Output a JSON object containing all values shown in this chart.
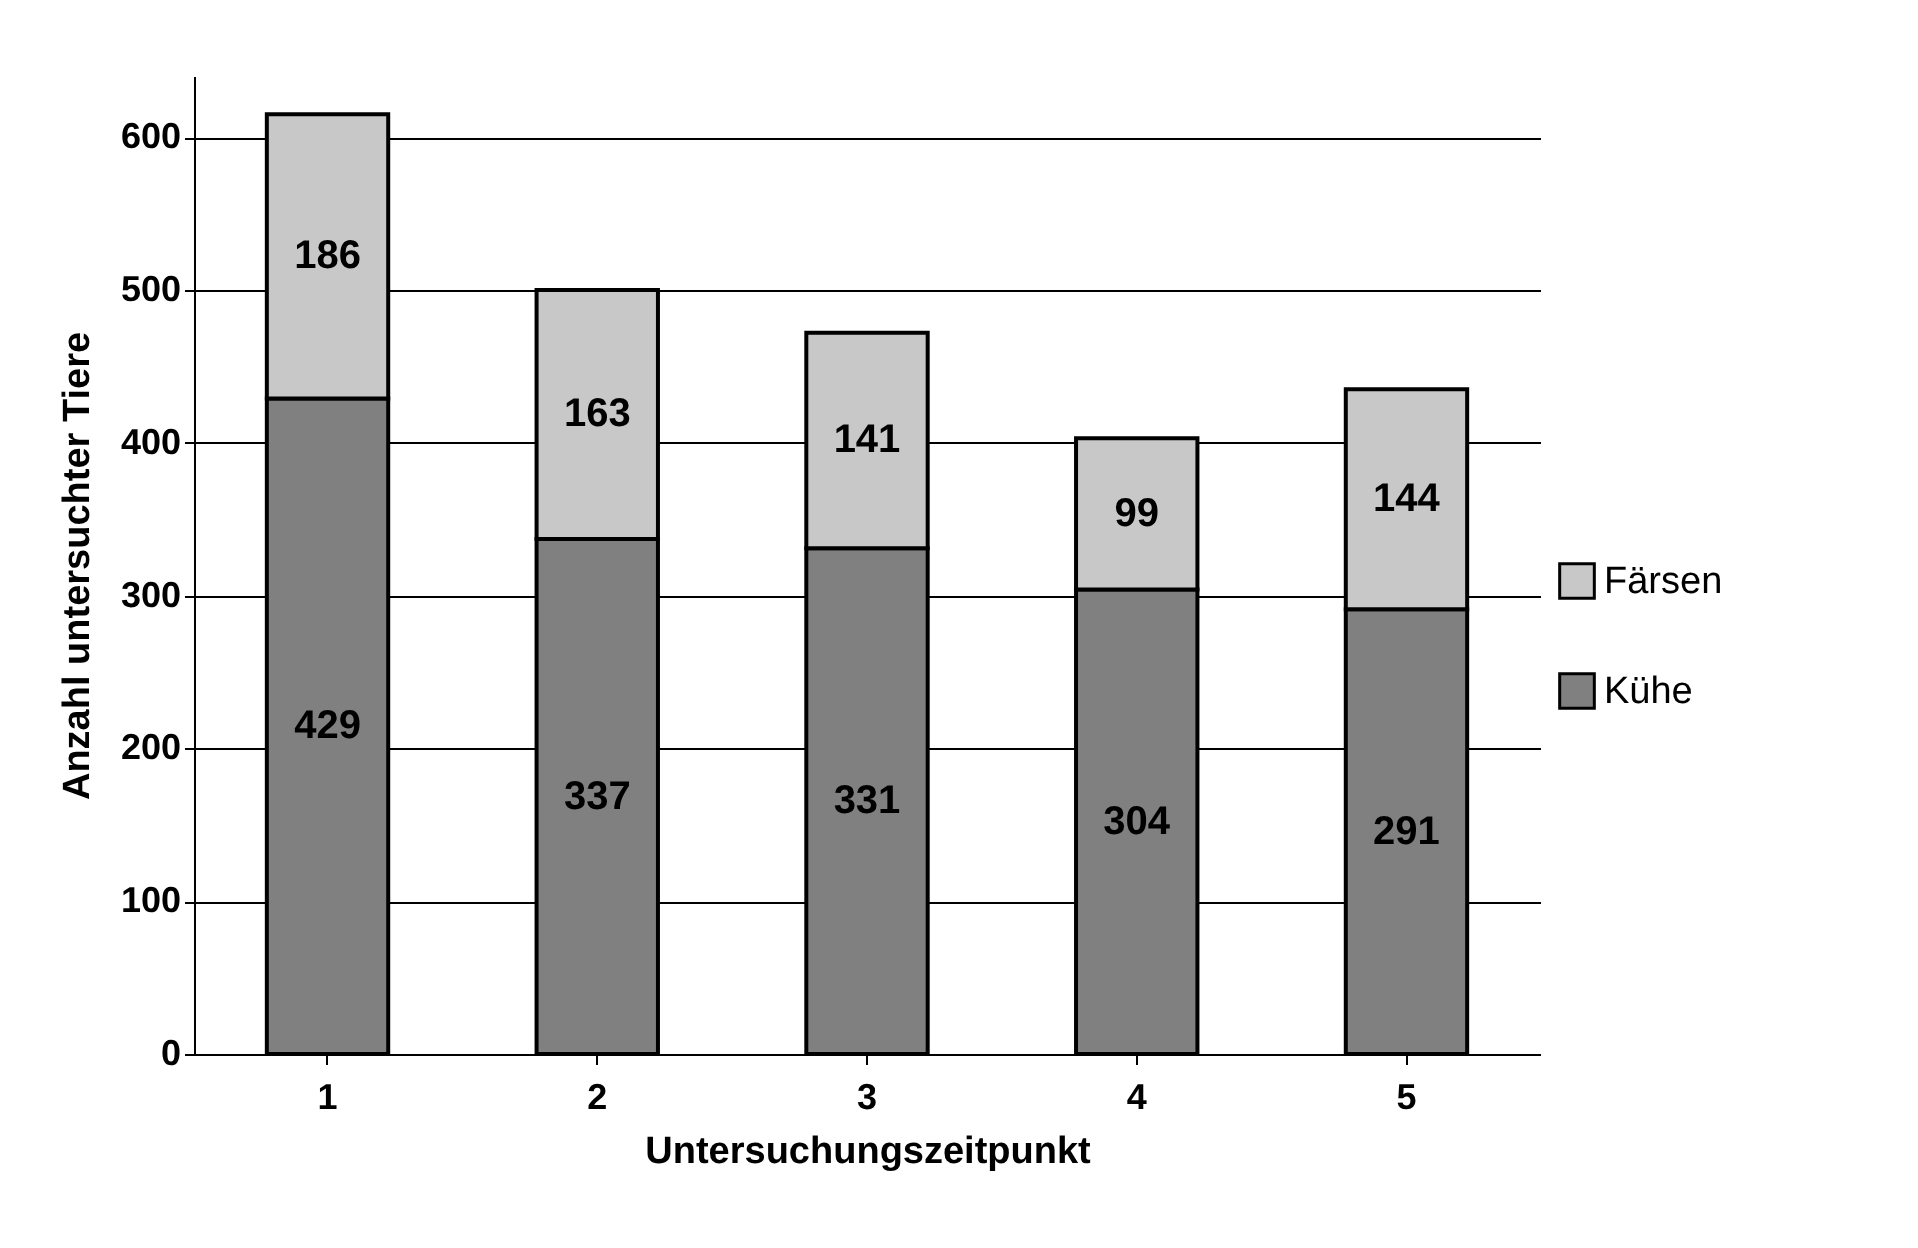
{
  "chart_data": {
    "type": "bar",
    "stacked": true,
    "xlabel": "Untersuchungszeitpunkt",
    "ylabel": "Anzahl untersuchter Tiere",
    "categories": [
      "1",
      "2",
      "3",
      "4",
      "5"
    ],
    "series": [
      {
        "name": "Kühe",
        "color": "#808080",
        "values": [
          429,
          337,
          331,
          304,
          291
        ]
      },
      {
        "name": "Färsen",
        "color": "#c8c8c8",
        "values": [
          186,
          163,
          141,
          99,
          144
        ]
      }
    ],
    "ylim": [
      0,
      640
    ],
    "yticks": [
      0,
      100,
      200,
      300,
      400,
      500,
      600
    ],
    "grid": "y",
    "legend": "right",
    "data_labels": true
  }
}
